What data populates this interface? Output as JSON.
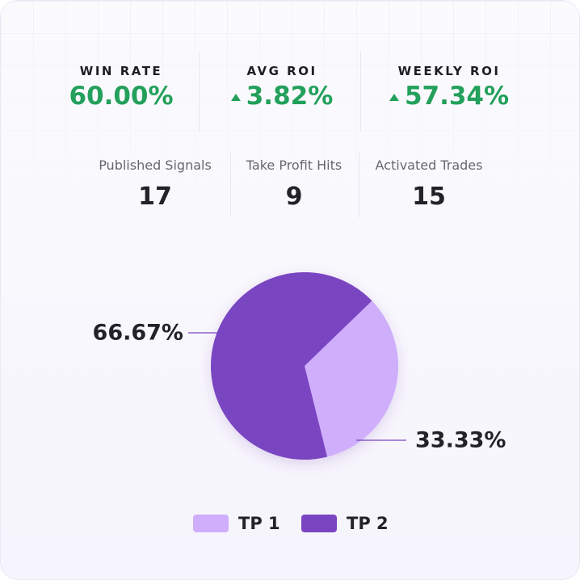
{
  "stats": [
    {
      "label": "WIN RATE",
      "value": "60.00%",
      "trend": "none"
    },
    {
      "label": "AVG ROI",
      "value": "3.82%",
      "trend": "up"
    },
    {
      "label": "WEEKLY ROI",
      "value": "57.34%",
      "trend": "up"
    }
  ],
  "counts": [
    {
      "label": "Published Signals",
      "value": 17
    },
    {
      "label": "Take Profit Hits",
      "value": 9
    },
    {
      "label": "Activated Trades",
      "value": 15
    }
  ],
  "chart_data": {
    "type": "pie",
    "categories": [
      "TP 1",
      "TP 2"
    ],
    "values": [
      33.33,
      66.67
    ],
    "value_labels": [
      "33.33%",
      "66.67%"
    ],
    "colors": [
      "#cfaefb",
      "#7a45c1"
    ],
    "start_angle": 46
  }
}
